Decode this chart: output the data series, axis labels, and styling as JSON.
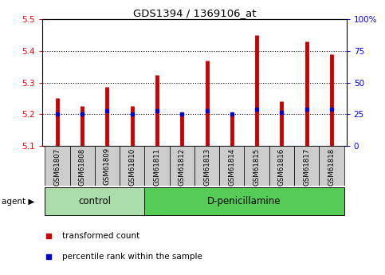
{
  "title": "GDS1394 / 1369106_at",
  "samples": [
    "GSM61807",
    "GSM61808",
    "GSM61809",
    "GSM61810",
    "GSM61811",
    "GSM61812",
    "GSM61813",
    "GSM61814",
    "GSM61815",
    "GSM61816",
    "GSM61817",
    "GSM61818"
  ],
  "transformed_count": [
    5.25,
    5.225,
    5.285,
    5.225,
    5.325,
    5.195,
    5.37,
    5.195,
    5.45,
    5.24,
    5.43,
    5.39
  ],
  "percentile_rank": [
    5.2,
    5.2,
    5.21,
    5.2,
    5.21,
    5.2,
    5.21,
    5.2,
    5.215,
    5.205,
    5.215,
    5.215
  ],
  "ylim_left": [
    5.1,
    5.5
  ],
  "ylim_right": [
    0,
    100
  ],
  "yticks_left": [
    5.1,
    5.2,
    5.3,
    5.4,
    5.5
  ],
  "yticks_right": [
    0,
    25,
    50,
    75,
    100
  ],
  "ytick_labels_right": [
    "0",
    "25",
    "50",
    "75",
    "100%"
  ],
  "n_control": 4,
  "n_treatment": 8,
  "control_label": "control",
  "treatment_label": "D-penicillamine",
  "agent_label": "agent",
  "bar_color": "#cc0000",
  "dot_color": "#0000cc",
  "tick_bg_color": "#cccccc",
  "control_bg": "#aaddaa",
  "treatment_bg": "#55cc55",
  "bar_bottom": 5.1,
  "legend_tc": "transformed count",
  "legend_pr": "percentile rank within the sample",
  "dotted_lines": [
    5.2,
    5.3,
    5.4
  ]
}
